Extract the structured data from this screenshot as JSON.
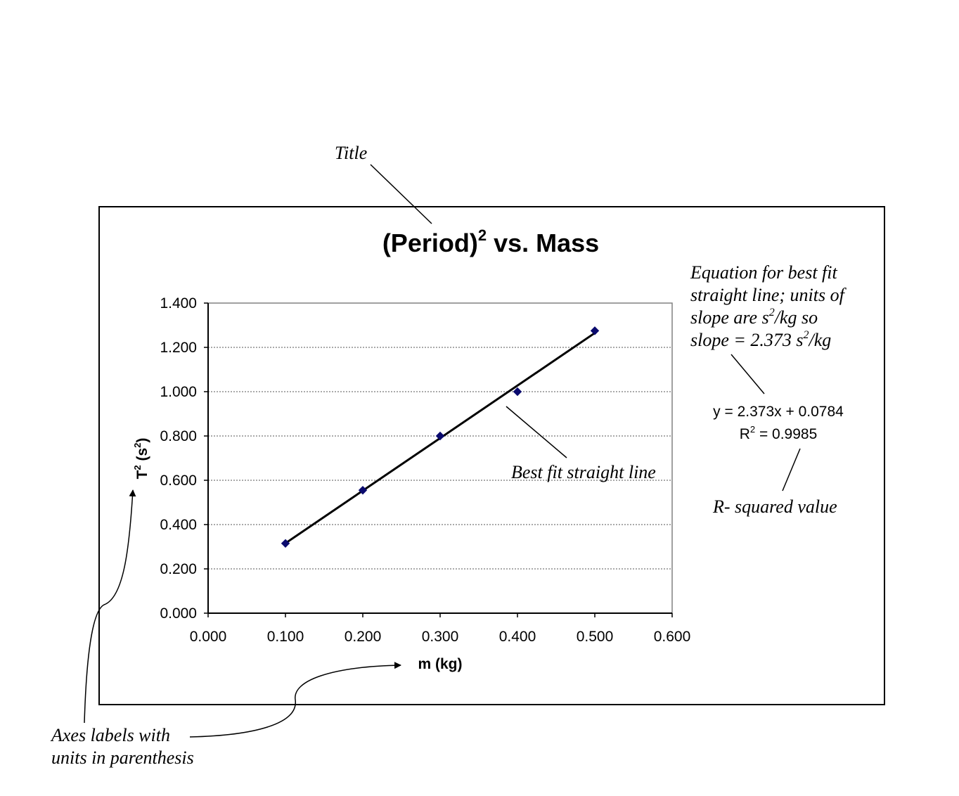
{
  "chart_data": {
    "type": "scatter",
    "title": {
      "main": "(Period)",
      "sup": "2",
      "rest": " vs.  Mass"
    },
    "xlabel": "m (kg)",
    "ylabel": {
      "pre": "T",
      "sup1": "2",
      "mid": " (s",
      "sup2": "2",
      "post": ")"
    },
    "xlim": [
      0,
      0.6
    ],
    "ylim": [
      0,
      1.4
    ],
    "xticks": [
      "0.000",
      "0.100",
      "0.200",
      "0.300",
      "0.400",
      "0.500",
      "0.600"
    ],
    "yticks": [
      "0.000",
      "0.200",
      "0.400",
      "0.600",
      "0.800",
      "1.000",
      "1.200",
      "1.400"
    ],
    "grid": "horizontal dotted",
    "points": [
      {
        "x": 0.1,
        "y": 0.315
      },
      {
        "x": 0.2,
        "y": 0.555
      },
      {
        "x": 0.3,
        "y": 0.8
      },
      {
        "x": 0.4,
        "y": 1.0
      },
      {
        "x": 0.5,
        "y": 1.275
      }
    ],
    "trendline": {
      "slope": 2.373,
      "intercept": 0.0784,
      "x_range": [
        0.1,
        0.5
      ]
    },
    "marker_color": "#0a0a6e",
    "line_color": "#000000",
    "equation_text": "y = 2.373x  + 0.0784",
    "r2_text": {
      "pre": "R",
      "sup": "2",
      "post": " = 0.9985"
    }
  },
  "annotations": {
    "title_note": "Title",
    "equation_note": {
      "line1": "Equation for best fit",
      "line2": "straight line; units of",
      "line3": {
        "pre": "slope are s",
        "sup": "2",
        "post": "/kg so"
      },
      "line4": {
        "pre": "slope = 2.373 s",
        "sup": "2",
        "post": "/kg"
      }
    },
    "bestfit_note": "Best fit straight line",
    "r2_note": "R- squared value",
    "axes_note": {
      "line1": "Axes labels with",
      "line2": "units in parenthesis"
    }
  }
}
